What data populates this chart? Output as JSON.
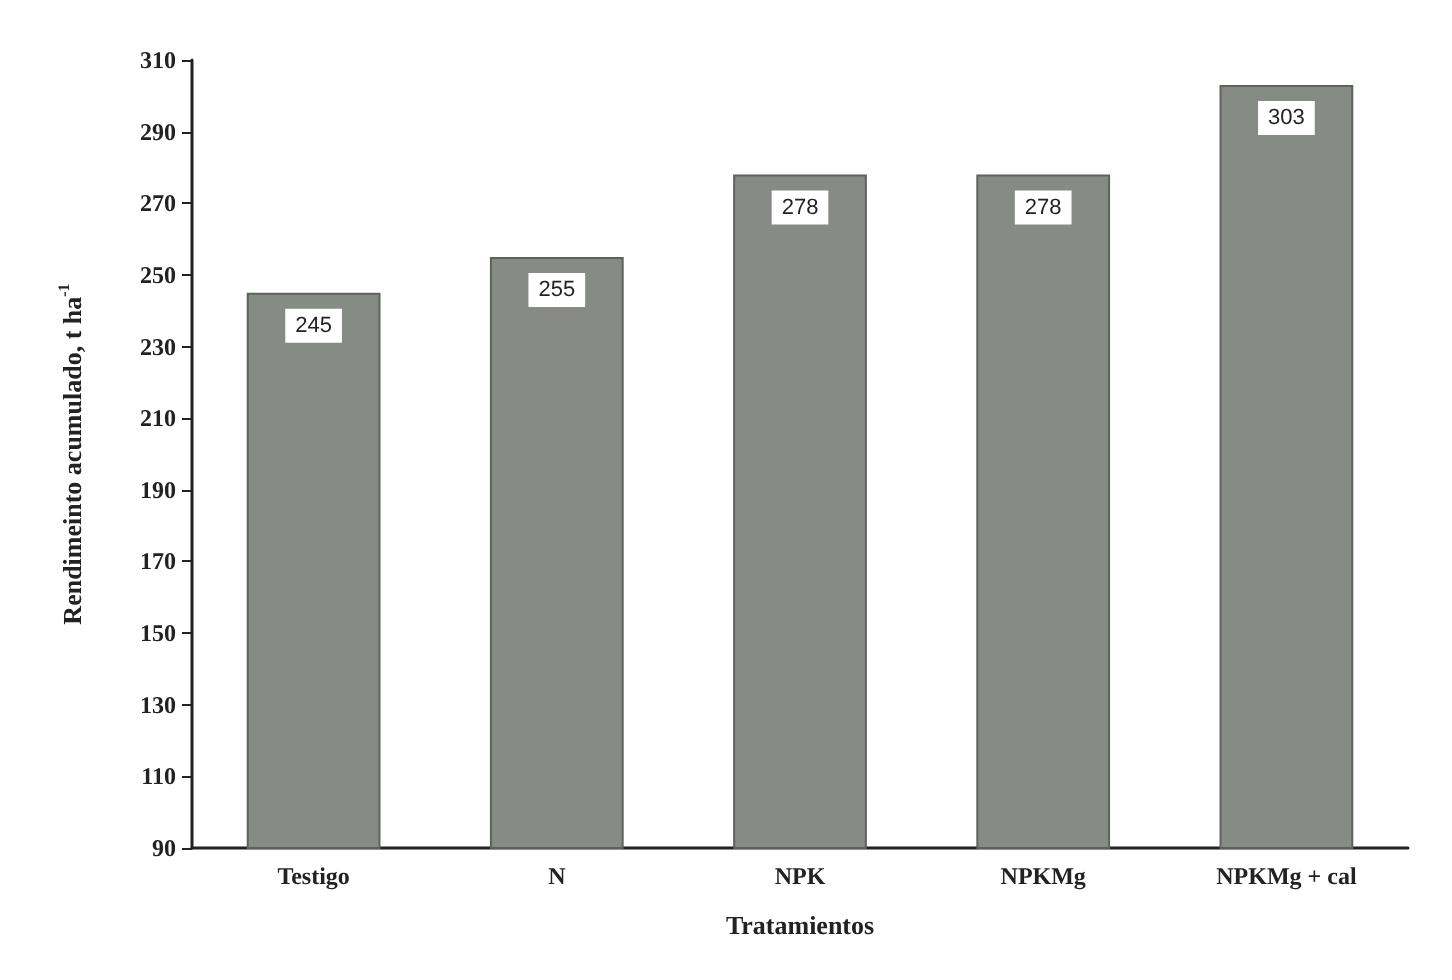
{
  "chart_data": {
    "type": "bar",
    "xlabel": "Tratamientos",
    "ylabel": "Rendimeinto acumulado, t ha$^{-1}$",
    "categories": [
      "Testigo",
      "N",
      "NPK",
      "NPKMg",
      "NPKMg + cal"
    ],
    "values": [
      245,
      255,
      278,
      278,
      303
    ],
    "color": "#868b85",
    "ylim": [
      90,
      310
    ],
    "yticks": [
      90,
      110,
      130,
      150,
      170,
      190,
      210,
      230,
      250,
      270,
      290,
      310
    ],
    "grid": false,
    "data_labels": true
  }
}
